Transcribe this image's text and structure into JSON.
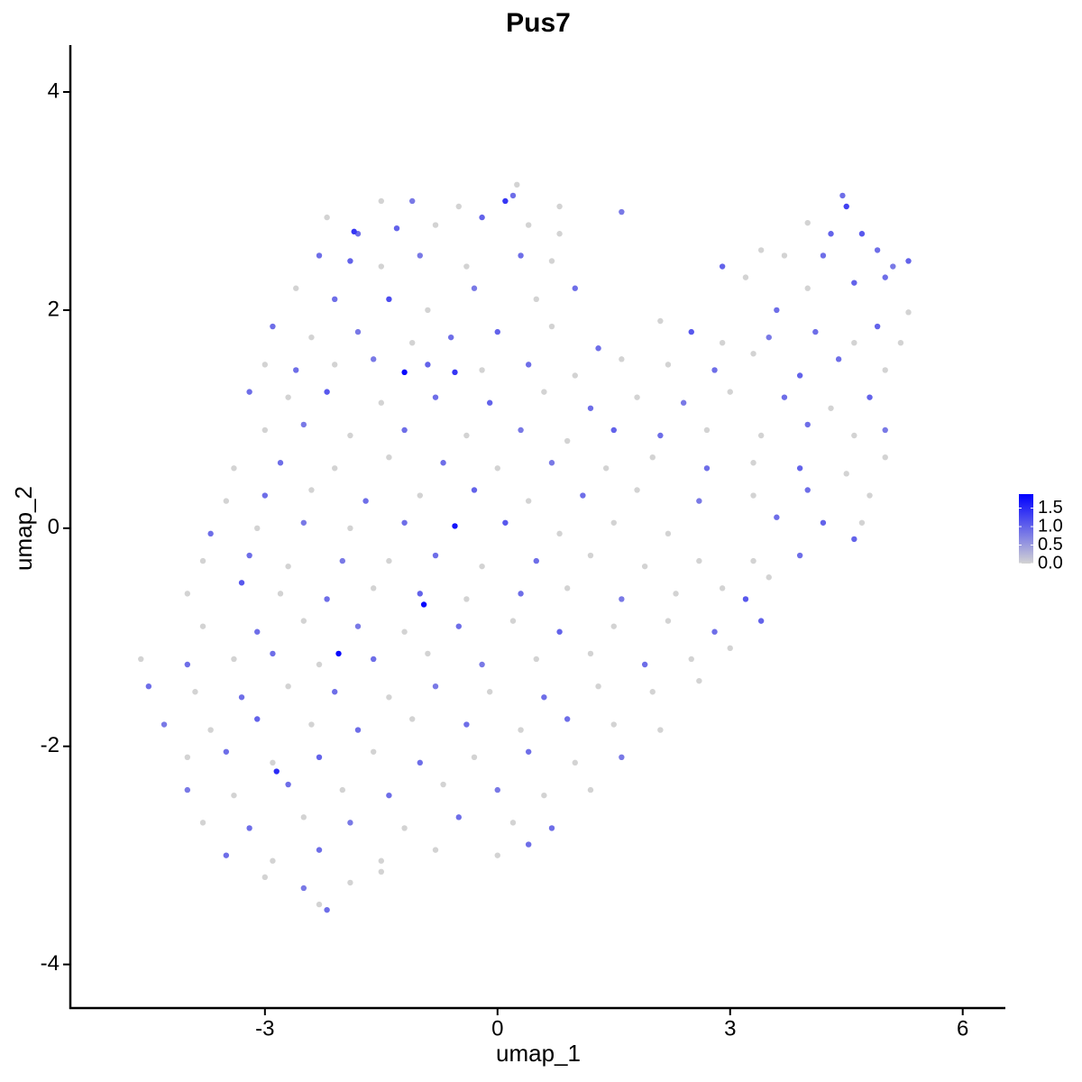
{
  "chart_data": {
    "type": "scatter",
    "title": "Pus7",
    "x_label": "umap_1",
    "y_label": "umap_2",
    "xlim": [
      -5.51,
      6.55
    ],
    "ylim": [
      -4.4,
      4.43
    ],
    "xticks": [
      -3,
      0,
      3,
      6
    ],
    "yticks": [
      -4,
      -2,
      0,
      2,
      4
    ],
    "color_low": "#d3d3d3",
    "color_high": "#0000ff",
    "colorbar_lim": [
      0,
      1.88
    ],
    "colorbar_ticks": [
      {
        "value": 0,
        "label": "0.0"
      },
      0.5,
      {
        "value": 1,
        "label": "1.0"
      },
      1.5
    ],
    "x": [
      -1.5,
      -1.1,
      -0.5,
      0.2,
      0.25,
      0.8,
      1.6,
      4.45,
      -2.2,
      -1.8,
      -1.3,
      -0.8,
      -0.2,
      0.4,
      0.8,
      4.0,
      4.3,
      4.7,
      4.9,
      -2.3,
      -1.9,
      -1.5,
      -1.0,
      -0.4,
      0.3,
      0.7,
      3.4,
      3.7,
      4.2,
      5.1,
      5.3,
      -2.6,
      -2.1,
      -1.4,
      -0.9,
      -0.3,
      0.5,
      1.0,
      2.9,
      3.2,
      3.6,
      4.0,
      4.6,
      5.0,
      5.3,
      -2.9,
      -2.4,
      -1.8,
      -1.1,
      -0.6,
      0.0,
      0.7,
      1.3,
      2.1,
      2.5,
      2.9,
      3.5,
      4.1,
      4.6,
      4.9,
      5.2,
      -3.0,
      -2.6,
      -2.1,
      -1.6,
      -0.9,
      -0.2,
      0.4,
      1.0,
      1.6,
      2.2,
      2.8,
      3.3,
      3.9,
      4.4,
      5.0,
      -3.2,
      -2.7,
      -2.2,
      -1.5,
      -0.8,
      -0.1,
      0.6,
      1.2,
      1.8,
      2.4,
      3.0,
      3.7,
      4.3,
      4.8,
      -3.0,
      -2.5,
      -1.9,
      -1.2,
      -0.4,
      0.3,
      0.9,
      1.5,
      2.1,
      2.7,
      3.4,
      4.0,
      4.6,
      5.0,
      -3.4,
      -2.8,
      -2.1,
      -1.4,
      -0.7,
      0.0,
      0.7,
      1.4,
      2.0,
      2.7,
      3.3,
      3.9,
      4.5,
      5.0,
      -3.5,
      -3.0,
      -2.4,
      -1.7,
      -1.0,
      -0.3,
      0.4,
      1.1,
      1.8,
      2.6,
      3.3,
      4.0,
      4.8,
      -3.7,
      -3.1,
      -2.5,
      -1.9,
      -1.2,
      0.1,
      0.8,
      1.5,
      2.2,
      3.6,
      4.2,
      4.7,
      -3.8,
      -3.2,
      -2.7,
      -2.0,
      -1.4,
      -0.8,
      -0.2,
      0.5,
      1.2,
      1.9,
      2.6,
      3.3,
      3.9,
      4.6,
      -4.0,
      -3.3,
      -2.8,
      -2.2,
      -1.6,
      -1.0,
      -0.4,
      0.3,
      0.9,
      1.6,
      2.3,
      2.9,
      3.5,
      3.2,
      -3.8,
      -3.1,
      -2.5,
      -1.8,
      -1.2,
      -0.5,
      0.2,
      0.8,
      1.5,
      2.2,
      2.8,
      3.4,
      -4.6,
      -4.0,
      -3.4,
      -2.9,
      -2.3,
      -1.6,
      -0.9,
      -0.2,
      0.5,
      1.2,
      1.9,
      2.5,
      3.0,
      -4.5,
      -3.9,
      -3.3,
      -2.7,
      -2.1,
      -1.4,
      -0.8,
      -0.1,
      0.6,
      1.3,
      2.0,
      2.6,
      -4.3,
      -3.7,
      -3.1,
      -2.4,
      -1.8,
      -1.1,
      -0.4,
      0.3,
      0.9,
      1.5,
      2.1,
      -4.0,
      -3.5,
      -2.9,
      -2.3,
      -1.6,
      -1.0,
      -0.3,
      0.4,
      1.0,
      1.6,
      -4.0,
      -3.4,
      -2.7,
      -2.0,
      -1.4,
      -0.7,
      0.0,
      0.6,
      1.2,
      -3.8,
      -3.2,
      -2.5,
      -1.9,
      -1.2,
      -0.5,
      0.2,
      0.7,
      -3.5,
      -2.9,
      -2.3,
      -1.5,
      -0.8,
      0.0,
      0.4,
      -3.0,
      -2.5,
      -1.9,
      -1.5,
      -2.2,
      -2.3,
      -1.2,
      -0.55,
      -0.55,
      -0.95,
      -2.05,
      0.1,
      -2.85,
      -1.85,
      4.5
    ],
    "y": [
      3.0,
      3.0,
      2.95,
      3.05,
      3.15,
      2.95,
      2.9,
      3.05,
      2.85,
      2.7,
      2.75,
      2.78,
      2.85,
      2.78,
      2.7,
      2.8,
      2.7,
      2.7,
      2.55,
      2.5,
      2.45,
      2.4,
      2.5,
      2.4,
      2.5,
      2.45,
      2.55,
      2.5,
      2.5,
      2.4,
      2.45,
      2.2,
      2.1,
      2.1,
      2.0,
      2.2,
      2.1,
      2.2,
      2.4,
      2.3,
      2.0,
      2.2,
      2.25,
      2.3,
      1.98,
      1.85,
      1.75,
      1.8,
      1.7,
      1.75,
      1.8,
      1.85,
      1.65,
      1.9,
      1.8,
      1.7,
      1.75,
      1.8,
      1.7,
      1.85,
      1.7,
      1.5,
      1.45,
      1.5,
      1.55,
      1.5,
      1.45,
      1.5,
      1.4,
      1.55,
      1.5,
      1.45,
      1.6,
      1.4,
      1.55,
      1.45,
      1.25,
      1.2,
      1.25,
      1.15,
      1.2,
      1.15,
      1.25,
      1.1,
      1.2,
      1.15,
      1.25,
      1.2,
      1.1,
      1.2,
      0.9,
      0.95,
      0.85,
      0.9,
      0.85,
      0.9,
      0.8,
      0.9,
      0.85,
      0.9,
      0.85,
      0.95,
      0.85,
      0.9,
      0.55,
      0.6,
      0.55,
      0.65,
      0.6,
      0.55,
      0.6,
      0.55,
      0.65,
      0.55,
      0.6,
      0.55,
      0.5,
      0.65,
      0.25,
      0.3,
      0.35,
      0.25,
      0.3,
      0.35,
      0.25,
      0.3,
      0.35,
      0.25,
      0.3,
      0.35,
      0.3,
      -0.05,
      0.0,
      0.05,
      0.0,
      0.05,
      0.05,
      -0.05,
      0.05,
      -0.05,
      0.1,
      0.05,
      0.05,
      -0.3,
      -0.25,
      -0.35,
      -0.3,
      -0.3,
      -0.25,
      -0.35,
      -0.3,
      -0.25,
      -0.35,
      -0.3,
      -0.3,
      -0.25,
      -0.1,
      -0.6,
      -0.5,
      -0.6,
      -0.65,
      -0.55,
      -0.6,
      -0.65,
      -0.6,
      -0.55,
      -0.65,
      -0.6,
      -0.55,
      -0.45,
      -0.65,
      -0.9,
      -0.95,
      -0.85,
      -0.9,
      -0.95,
      -0.9,
      -0.85,
      -0.95,
      -0.9,
      -0.85,
      -0.95,
      -0.85,
      -1.2,
      -1.25,
      -1.2,
      -1.15,
      -1.25,
      -1.2,
      -1.15,
      -1.25,
      -1.2,
      -1.15,
      -1.25,
      -1.2,
      -1.1,
      -1.45,
      -1.5,
      -1.55,
      -1.45,
      -1.5,
      -1.55,
      -1.45,
      -1.5,
      -1.55,
      -1.45,
      -1.5,
      -1.4,
      -1.8,
      -1.85,
      -1.75,
      -1.8,
      -1.85,
      -1.75,
      -1.8,
      -1.85,
      -1.75,
      -1.8,
      -1.85,
      -2.1,
      -2.05,
      -2.15,
      -2.1,
      -2.05,
      -2.15,
      -2.1,
      -2.05,
      -2.15,
      -2.1,
      -2.4,
      -2.45,
      -2.35,
      -2.4,
      -2.45,
      -2.35,
      -2.4,
      -2.45,
      -2.4,
      -2.7,
      -2.75,
      -2.65,
      -2.7,
      -2.75,
      -2.65,
      -2.7,
      -2.75,
      -3.0,
      -3.05,
      -2.95,
      -3.05,
      -2.95,
      -3.0,
      -2.9,
      -3.2,
      -3.3,
      -3.25,
      -3.15,
      -3.5,
      -3.45,
      1.43,
      1.43,
      0.02,
      -0.7,
      -1.15,
      3.0,
      -2.23,
      2.72,
      2.95
    ],
    "values": [
      0,
      0.8,
      0,
      0.9,
      0,
      0,
      0.8,
      0.9,
      0,
      0.9,
      1.0,
      0,
      1.0,
      0,
      0,
      0,
      1.0,
      1.1,
      0.9,
      0.9,
      1.0,
      0,
      0.8,
      0,
      0.9,
      0,
      0,
      0,
      0.9,
      0.8,
      1.0,
      0,
      0.9,
      1.2,
      0,
      0.8,
      0,
      0.9,
      1.0,
      0,
      0.9,
      0,
      1.0,
      0.9,
      0,
      0.9,
      0,
      0.8,
      0,
      0.9,
      1.0,
      0,
      0.9,
      0,
      1.1,
      0,
      0.8,
      0.9,
      0,
      1.0,
      0,
      0,
      0.9,
      0,
      0.8,
      1.0,
      0,
      0.9,
      0,
      0,
      0,
      0.9,
      0,
      1.0,
      0.9,
      0,
      0.9,
      0,
      1.1,
      0,
      0.9,
      1.0,
      0,
      0.9,
      0,
      0.8,
      0,
      0.9,
      0,
      1.0,
      0,
      0.8,
      0,
      0.9,
      0,
      0.8,
      0,
      1.0,
      0.9,
      0,
      0,
      0.9,
      0,
      0.8,
      0,
      0.9,
      0,
      0,
      0.9,
      0,
      0.8,
      0,
      0,
      0.9,
      0,
      1.0,
      0,
      0,
      0,
      0.9,
      0,
      0.9,
      0,
      1.0,
      0,
      0.9,
      0,
      0.8,
      0,
      0.9,
      0,
      0.9,
      0,
      0.8,
      0,
      0.9,
      1.1,
      0,
      0,
      0,
      0.9,
      1.0,
      0,
      0,
      0.9,
      0,
      0.8,
      0,
      0.9,
      0,
      0.9,
      0,
      0,
      0,
      0,
      0.9,
      1.0,
      0,
      1.1,
      0,
      0.9,
      0,
      1.0,
      0,
      0.9,
      0,
      0.8,
      0,
      0,
      0,
      1.1,
      0,
      0.9,
      0,
      0.8,
      0,
      0.9,
      0,
      1.0,
      0,
      0,
      0.9,
      1.0,
      0,
      0.9,
      0,
      0.9,
      0,
      0.9,
      0,
      0.8,
      0,
      0,
      0.9,
      0,
      0,
      0.9,
      0,
      0.9,
      0,
      0.9,
      0,
      0.8,
      0,
      0.9,
      0,
      0,
      0,
      0.8,
      0,
      1.0,
      0,
      0.9,
      0,
      0.9,
      0,
      0.9,
      0,
      0,
      0,
      0.9,
      0,
      1.0,
      0,
      0.9,
      0,
      0.9,
      0,
      0.8,
      0.8,
      0,
      0.9,
      0,
      0.9,
      0,
      0.8,
      0,
      0,
      0,
      0.9,
      0,
      0.8,
      0,
      0.9,
      0,
      0.9,
      0.9,
      0,
      0.9,
      0,
      0,
      0,
      0.9,
      0,
      0.8,
      0,
      0,
      0.9,
      0,
      1.8,
      1.4,
      1.7,
      1.8,
      1.8,
      1.4,
      1.5,
      1.4,
      1.3
    ]
  }
}
